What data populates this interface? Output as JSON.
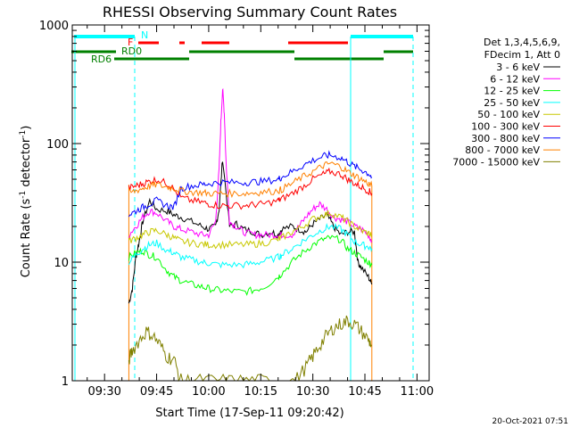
{
  "chart_data": {
    "type": "line",
    "title": "RHESSI Observing Summary Count Rates",
    "xlabel": "Start Time (17-Sep-11 09:20:42)",
    "ylabel_main": "Count Rate (s",
    "ylabel_sup": "-1",
    "ylabel_rest": " detector",
    "ylabel_end": ")",
    "y_scale": "log",
    "ylim": [
      1,
      1000
    ],
    "xlim_minutes": [
      20.7,
      81.0
    ],
    "x_ticks": [
      {
        "label": "09:30",
        "minute": 30
      },
      {
        "label": "09:45",
        "minute": 45
      },
      {
        "label": "10:00",
        "minute": 60
      },
      {
        "label": "10:15",
        "minute": 75
      },
      {
        "label": "10:30",
        "minute": 90
      },
      {
        "label": "10:45",
        "minute": 105
      },
      {
        "label": "11:00",
        "minute": 120
      }
    ],
    "y_ticks": [
      {
        "label": "1",
        "value": 1
      },
      {
        "label": "10",
        "value": 10
      },
      {
        "label": "100",
        "value": 100
      },
      {
        "label": "1000",
        "value": 1000
      }
    ],
    "legend_header": [
      "Det 1,3,4,5,6,9,",
      "FDecim 1, Att 0"
    ],
    "legend_placement": "right",
    "timestamp": "20-Oct-2021 07:51",
    "flags": {
      "N_label": "N",
      "F_label": "F",
      "RD0_label": "RD0",
      "RD6_label": "RD6"
    },
    "series": [
      {
        "name": "3 - 6 keV",
        "color": "#000000",
        "x": [
          37,
          38,
          39,
          40,
          41,
          43,
          45,
          48,
          50,
          52,
          55,
          58,
          60,
          62,
          63,
          64,
          66,
          68,
          70,
          73,
          75,
          78,
          80,
          81,
          84,
          86,
          88,
          90,
          92,
          94,
          96,
          98,
          100,
          102,
          103,
          104,
          106,
          107
        ],
        "y": [
          4.5,
          6,
          11,
          15,
          22,
          33,
          28,
          27,
          25,
          24,
          22,
          20,
          19,
          20,
          28,
          75,
          20,
          21,
          19,
          18,
          17,
          18,
          17,
          19,
          20,
          19,
          18,
          21,
          23,
          25,
          20,
          17,
          18,
          18,
          10,
          9,
          7.5,
          6.5
        ]
      },
      {
        "name": "6 - 12 keV",
        "color": "#ff00ff",
        "x": [
          37,
          39,
          41,
          43,
          45,
          48,
          50,
          52,
          55,
          58,
          60,
          62,
          63,
          63.5,
          64,
          64.5,
          65,
          66,
          68,
          70,
          73,
          75,
          78,
          80,
          81,
          84,
          86,
          88,
          90,
          92,
          94,
          96,
          98,
          100,
          102,
          104,
          106,
          107
        ],
        "y": [
          17,
          20,
          24,
          27,
          26,
          22,
          20,
          19,
          18,
          17,
          17,
          22,
          60,
          150,
          290,
          180,
          70,
          22,
          20,
          18,
          17,
          17,
          17,
          17,
          17,
          17,
          20,
          24,
          28,
          31,
          28,
          24,
          23,
          22,
          20,
          19,
          17,
          15
        ]
      },
      {
        "name": "12 - 25 keV",
        "color": "#00ff00",
        "x": [
          37,
          39,
          41,
          43,
          45,
          48,
          50,
          52,
          55,
          58,
          60,
          63,
          66,
          70,
          73,
          76,
          80,
          81,
          84,
          87,
          90,
          93,
          95,
          98,
          100,
          102,
          104,
          106,
          107
        ],
        "y": [
          11,
          12,
          12.5,
          11.5,
          11,
          8.5,
          7.5,
          7,
          6.5,
          6.2,
          6,
          5.8,
          5.7,
          5.6,
          5.8,
          6.2,
          7.5,
          8,
          10,
          12,
          14,
          15.5,
          16,
          15.5,
          13,
          12,
          11,
          10,
          9.5
        ]
      },
      {
        "name": "25 - 50 keV",
        "color": "#00ffff",
        "x": [
          37,
          39,
          41,
          43,
          45,
          48,
          50,
          52,
          55,
          58,
          60,
          63,
          66,
          70,
          73,
          76,
          80,
          81,
          84,
          87,
          90,
          93,
          95,
          98,
          100,
          102,
          104,
          106,
          107
        ],
        "y": [
          10,
          11.5,
          13,
          14,
          14.5,
          12.5,
          12,
          11,
          10.5,
          10,
          9.8,
          9.5,
          9.5,
          9.5,
          9.8,
          10.2,
          11,
          11.5,
          13,
          15,
          17,
          19,
          20,
          19,
          17,
          15,
          14,
          13.5,
          13
        ]
      },
      {
        "name": "50 - 100 keV",
        "color": "#c8c800",
        "x": [
          37,
          39,
          41,
          43,
          45,
          48,
          50,
          52,
          55,
          58,
          60,
          63,
          66,
          70,
          73,
          76,
          80,
          81,
          84,
          87,
          90,
          93,
          95,
          98,
          100,
          102,
          104,
          106,
          107
        ],
        "y": [
          15,
          16,
          17,
          18,
          18.5,
          17,
          16,
          15,
          14.5,
          14.2,
          14,
          14,
          14,
          14,
          14.2,
          14.5,
          15.5,
          16,
          18,
          20,
          23,
          25,
          26,
          24,
          22,
          20,
          18.5,
          17.5,
          17
        ]
      },
      {
        "name": "100 - 300 keV",
        "color": "#ff0000",
        "x": [
          37,
          39,
          41,
          43,
          45,
          48,
          49,
          52,
          55,
          58,
          60,
          63,
          66,
          70,
          73,
          76,
          80,
          81,
          84,
          87,
          90,
          93,
          95,
          98,
          100,
          102,
          104,
          106,
          107
        ],
        "y": [
          42,
          44,
          46,
          48,
          50,
          46,
          44,
          35,
          33,
          32,
          31,
          30,
          30,
          30,
          30.5,
          31,
          33,
          34,
          38,
          43,
          50,
          55,
          58,
          55,
          50,
          46,
          43,
          40,
          38
        ]
      },
      {
        "name": "300 - 800 keV",
        "color": "#0000ff",
        "x": [
          37,
          39,
          41,
          43,
          45,
          48,
          50,
          52,
          55,
          58,
          60,
          63,
          66,
          70,
          73,
          76,
          80,
          81,
          84,
          87,
          90,
          93,
          95,
          98,
          100,
          102,
          104,
          106,
          107
        ],
        "y": [
          25,
          27,
          29,
          31,
          33,
          30,
          29,
          42,
          44,
          45,
          46,
          47,
          47,
          47,
          47.5,
          48,
          50,
          52,
          58,
          65,
          72,
          78,
          80,
          76,
          70,
          64,
          60,
          56,
          52
        ]
      },
      {
        "name": "800 - 7000 keV",
        "color": "#ff8000",
        "x": [
          37,
          39,
          41,
          43,
          45,
          48,
          50,
          52,
          55,
          58,
          60,
          63,
          66,
          70,
          73,
          76,
          80,
          81,
          84,
          87,
          90,
          93,
          95,
          98,
          100,
          102,
          104,
          106,
          107
        ],
        "y": [
          38,
          40,
          42,
          44,
          45,
          43,
          42,
          40,
          39,
          38.5,
          38,
          38,
          38,
          38,
          38.5,
          39,
          40,
          41,
          46,
          52,
          58,
          65,
          68,
          64,
          58,
          54,
          50,
          46,
          44
        ]
      },
      {
        "name": "7000 - 15000 keV",
        "color": "#808000",
        "x": [
          37,
          38,
          40,
          42,
          44,
          46,
          48,
          50,
          52,
          55,
          60,
          65,
          70,
          75,
          80,
          85,
          88,
          90,
          92,
          94,
          96,
          98,
          100,
          102,
          104,
          106,
          107
        ],
        "y": [
          1.5,
          1.8,
          2.2,
          2.6,
          2.4,
          2.0,
          1.6,
          1.5,
          1.0,
          1.0,
          1.0,
          1.0,
          1.0,
          1.0,
          1.0,
          1.0,
          1.3,
          1.6,
          2.0,
          2.4,
          2.8,
          3.0,
          3.2,
          3.0,
          2.6,
          2.2,
          2.0
        ]
      }
    ]
  }
}
